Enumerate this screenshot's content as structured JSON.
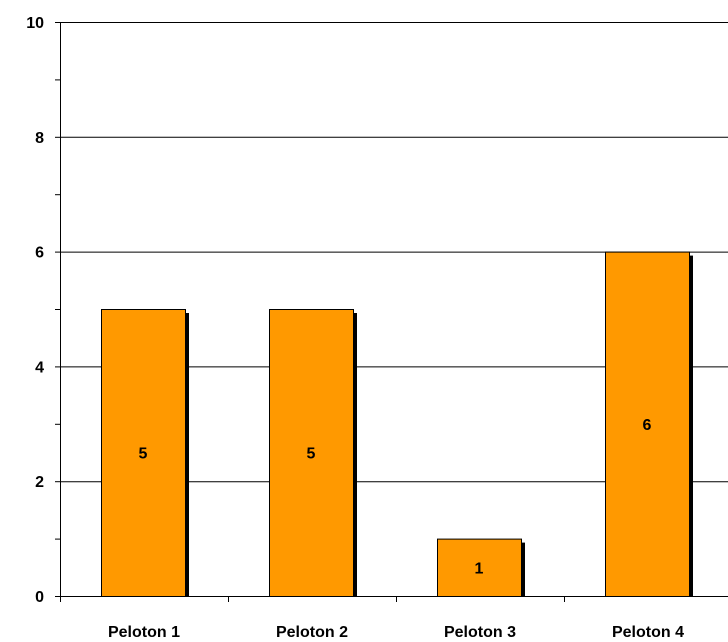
{
  "chart_data": {
    "type": "bar",
    "title": "",
    "xlabel": "",
    "ylabel": "",
    "categories": [
      "Peloton 1",
      "Peloton 2",
      "Peloton 3",
      "Peloton 4"
    ],
    "values": [
      5,
      5,
      1,
      6
    ],
    "data_labels": [
      "5",
      "5",
      "1",
      "6"
    ],
    "ylim": [
      0,
      10
    ],
    "y_ticks": [
      0,
      2,
      4,
      6,
      8,
      10
    ],
    "y_tick_labels": [
      "0",
      "2",
      "4",
      "6",
      "8",
      "10"
    ],
    "grid": true,
    "legend": "none",
    "bar_color": "#FF9900",
    "bar_outline": "#000000",
    "shadow_color": "#000000",
    "grid_color": "#000000",
    "axis_color": "#000000"
  }
}
